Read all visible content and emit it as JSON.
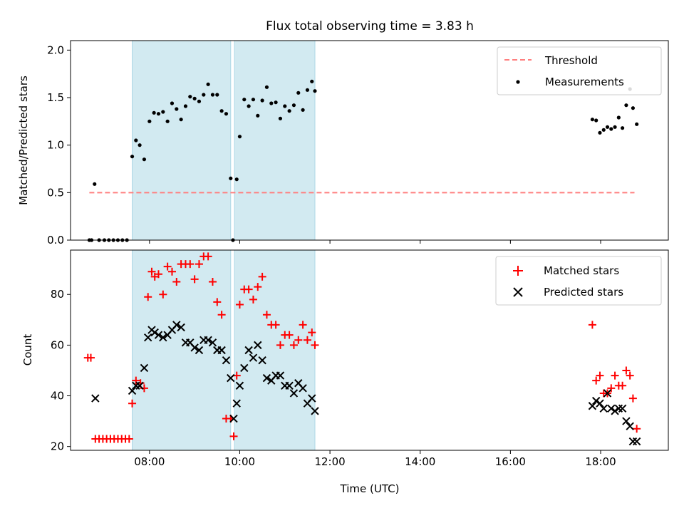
{
  "figure": {
    "title": "Flux total observing time = 3.83 h",
    "xlabel": "Time (UTC)"
  },
  "colors": {
    "threshold": "#ff7f7f",
    "measurement": "#000000",
    "matched": "#ff0000",
    "predicted": "#000000",
    "shade": "#add8e6"
  },
  "chart_data": [
    {
      "type": "scatter",
      "panel": "top",
      "ylabel": "Matched/Predicted stars",
      "xlim": [
        "06:15",
        "19:30"
      ],
      "ylim": [
        0,
        2.1
      ],
      "x_ticks": [
        "08:00",
        "10:00",
        "12:00",
        "14:00",
        "16:00",
        "18:00"
      ],
      "x_tick_labels_shown": false,
      "y_ticks": [
        "0.0",
        "0.5",
        "1.0",
        "1.5",
        "2.0"
      ],
      "shaded_intervals": [
        [
          "07:37",
          "09:48"
        ],
        [
          "09:53",
          "11:40"
        ]
      ],
      "legend": {
        "position": "top-right",
        "entries": [
          "Threshold",
          "Measurements"
        ]
      },
      "series": [
        {
          "name": "Threshold",
          "style": "dashed-line",
          "x": [
            "06:40",
            "18:45"
          ],
          "y": [
            0.5,
            0.5
          ]
        },
        {
          "name": "Measurements",
          "style": "dot",
          "x": [
            "06:40",
            "06:43",
            "06:47",
            "06:53",
            "07:00",
            "07:06",
            "07:12",
            "07:18",
            "07:24",
            "07:30",
            "07:37",
            "07:42",
            "07:47",
            "07:53",
            "08:00",
            "08:06",
            "08:12",
            "08:18",
            "08:24",
            "08:30",
            "08:36",
            "08:42",
            "08:48",
            "08:54",
            "09:00",
            "09:06",
            "09:12",
            "09:18",
            "09:24",
            "09:30",
            "09:36",
            "09:42",
            "09:48",
            "09:51",
            "09:56",
            "10:00",
            "10:06",
            "10:12",
            "10:18",
            "10:24",
            "10:30",
            "10:36",
            "10:42",
            "10:48",
            "10:54",
            "11:00",
            "11:06",
            "11:12",
            "11:18",
            "11:24",
            "11:30",
            "11:36",
            "11:40",
            "17:49",
            "17:54",
            "17:59",
            "18:04",
            "18:09",
            "18:14",
            "18:19",
            "18:24",
            "18:29",
            "18:34",
            "18:39",
            "18:43",
            "18:48"
          ],
          "y": [
            0.0,
            0.0,
            0.59,
            0.0,
            0.0,
            0.0,
            0.0,
            0.0,
            0.0,
            0.0,
            0.88,
            1.05,
            1.0,
            0.85,
            1.25,
            1.34,
            1.33,
            1.35,
            1.25,
            1.44,
            1.38,
            1.27,
            1.41,
            1.51,
            1.49,
            1.46,
            1.53,
            1.64,
            1.53,
            1.53,
            1.36,
            1.33,
            0.65,
            0.0,
            0.64,
            1.09,
            1.48,
            1.41,
            1.48,
            1.31,
            1.47,
            1.61,
            1.44,
            1.45,
            1.28,
            1.41,
            1.36,
            1.42,
            1.55,
            1.37,
            1.58,
            1.67,
            1.57,
            1.27,
            1.26,
            1.13,
            1.16,
            1.19,
            1.17,
            1.19,
            1.29,
            1.18,
            1.42,
            1.59,
            1.39,
            1.22
          ]
        }
      ]
    },
    {
      "type": "scatter",
      "panel": "bottom",
      "ylabel": "Count",
      "xlim": [
        "06:15",
        "19:30"
      ],
      "ylim": [
        18.5,
        97.5
      ],
      "x_ticks": [
        "08:00",
        "10:00",
        "12:00",
        "14:00",
        "16:00",
        "18:00"
      ],
      "y_ticks": [
        "20",
        "40",
        "60",
        "80"
      ],
      "shaded_intervals": [
        [
          "07:37",
          "09:48"
        ],
        [
          "09:53",
          "11:40"
        ]
      ],
      "legend": {
        "position": "top-right",
        "entries": [
          "Matched stars",
          "Predicted stars"
        ]
      },
      "series": [
        {
          "name": "Matched stars",
          "marker": "plus",
          "x": [
            "06:38",
            "06:42",
            "06:48",
            "06:53",
            "06:58",
            "07:03",
            "07:08",
            "07:13",
            "07:18",
            "07:23",
            "07:28",
            "07:33",
            "07:37",
            "07:42",
            "07:48",
            "07:53",
            "07:58",
            "08:03",
            "08:07",
            "08:12",
            "08:18",
            "08:24",
            "08:30",
            "08:36",
            "08:42",
            "08:48",
            "08:54",
            "09:00",
            "09:06",
            "09:12",
            "09:18",
            "09:24",
            "09:30",
            "09:36",
            "09:42",
            "09:48",
            "09:52",
            "09:56",
            "10:00",
            "10:06",
            "10:12",
            "10:18",
            "10:24",
            "10:30",
            "10:36",
            "10:42",
            "10:48",
            "10:54",
            "11:00",
            "11:06",
            "11:12",
            "11:18",
            "11:24",
            "11:30",
            "11:36",
            "11:40",
            "17:49",
            "17:54",
            "17:59",
            "18:04",
            "18:09",
            "18:14",
            "18:19",
            "18:24",
            "18:29",
            "18:34",
            "18:39",
            "18:43",
            "18:48"
          ],
          "y": [
            55,
            55,
            23,
            23,
            23,
            23,
            23,
            23,
            23,
            23,
            23,
            23,
            37,
            46,
            45,
            43,
            79,
            89,
            87,
            88,
            80,
            91,
            89,
            85,
            92,
            92,
            92,
            86,
            92,
            95,
            95,
            85,
            77,
            72,
            31,
            31,
            24,
            48,
            76,
            82,
            82,
            78,
            83,
            87,
            72,
            68,
            68,
            60,
            64,
            64,
            60,
            62,
            68,
            62,
            65,
            60,
            68,
            46,
            48,
            41,
            41,
            43,
            48,
            44,
            44,
            50,
            48,
            39,
            27
          ]
        },
        {
          "name": "Predicted stars",
          "marker": "x",
          "x": [
            "06:48",
            "07:37",
            "07:42",
            "07:47",
            "07:53",
            "07:58",
            "08:03",
            "08:07",
            "08:12",
            "08:18",
            "08:24",
            "08:30",
            "08:36",
            "08:42",
            "08:48",
            "08:54",
            "09:00",
            "09:06",
            "09:12",
            "09:18",
            "09:24",
            "09:30",
            "09:36",
            "09:42",
            "09:48",
            "09:52",
            "09:56",
            "10:00",
            "10:06",
            "10:12",
            "10:18",
            "10:24",
            "10:30",
            "10:36",
            "10:42",
            "10:48",
            "10:54",
            "11:00",
            "11:06",
            "11:12",
            "11:18",
            "11:24",
            "11:30",
            "11:36",
            "11:40",
            "17:49",
            "17:54",
            "17:59",
            "18:04",
            "18:09",
            "18:14",
            "18:19",
            "18:24",
            "18:29",
            "18:34",
            "18:39",
            "18:43",
            "18:48"
          ],
          "y": [
            39,
            42,
            44,
            44,
            51,
            63,
            66,
            65,
            64,
            63,
            64,
            66,
            68,
            67,
            61,
            61,
            59,
            58,
            62,
            62,
            61,
            58,
            58,
            54,
            47,
            31,
            37,
            44,
            51,
            58,
            55,
            60,
            54,
            47,
            46,
            48,
            48,
            44,
            44,
            41,
            45,
            43,
            37,
            39,
            34,
            36,
            38,
            37,
            35,
            41,
            35,
            34,
            35,
            35,
            30,
            28,
            22,
            22
          ]
        }
      ]
    }
  ]
}
